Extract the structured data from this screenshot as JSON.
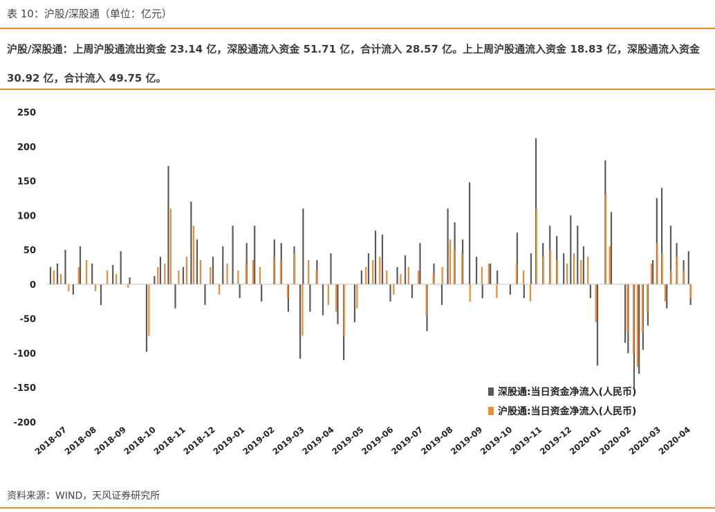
{
  "caption": "表 10：沪股/深股通（单位：亿元）",
  "summary": "沪股/深股通：上周沪股通流出资金 23.14 亿，深股通流入资金 51.71 亿，合计流入 28.57 亿。上上周沪股通流入资金 18.83 亿，深股通流入资金 30.92 亿，合计流入 49.75 亿。",
  "source": "资料来源：WIND，天风证券研究所",
  "colors": {
    "sz": "#595959",
    "sh": "#ee8a35",
    "rule": "#e58a2b"
  },
  "chart_data": {
    "type": "bar",
    "title": "",
    "xlabel": "",
    "ylabel": "",
    "ylim": [
      -200,
      250
    ],
    "yticks": [
      250,
      200,
      150,
      100,
      50,
      0,
      -50,
      -100,
      -150,
      -200
    ],
    "x_ticks": [
      "2018-07",
      "2018-08",
      "2018-09",
      "2018-10",
      "2018-11",
      "2018-12",
      "2019-01",
      "2019-02",
      "2019-03",
      "2019-04",
      "2019-05",
      "2019-06",
      "2019-07",
      "2019-08",
      "2019-09",
      "2019-10",
      "2019-11",
      "2019-12",
      "2020-01",
      "2020-02",
      "2020-03",
      "2020-04"
    ],
    "legend_position": "bottom-right",
    "grid": false,
    "series": [
      {
        "name": "深股通:当日资金净流入(人民币)",
        "color_key": "sz",
        "points": [
          [
            "2018-07-03",
            25
          ],
          [
            "2018-07-10",
            30
          ],
          [
            "2018-07-18",
            50
          ],
          [
            "2018-07-26",
            -15
          ],
          [
            "2018-08-02",
            55
          ],
          [
            "2018-08-14",
            30
          ],
          [
            "2018-08-23",
            -30
          ],
          [
            "2018-09-04",
            28
          ],
          [
            "2018-09-12",
            48
          ],
          [
            "2018-09-21",
            10
          ],
          [
            "2018-10-08",
            -98
          ],
          [
            "2018-10-16",
            12
          ],
          [
            "2018-10-22",
            40
          ],
          [
            "2018-10-30",
            172
          ],
          [
            "2018-11-06",
            -35
          ],
          [
            "2018-11-14",
            25
          ],
          [
            "2018-11-22",
            120
          ],
          [
            "2018-11-28",
            65
          ],
          [
            "2018-12-06",
            -30
          ],
          [
            "2018-12-14",
            40
          ],
          [
            "2018-12-24",
            55
          ],
          [
            "2019-01-03",
            85
          ],
          [
            "2019-01-10",
            -20
          ],
          [
            "2019-01-17",
            60
          ],
          [
            "2019-01-25",
            85
          ],
          [
            "2019-02-01",
            -25
          ],
          [
            "2019-02-14",
            65
          ],
          [
            "2019-02-21",
            60
          ],
          [
            "2019-02-28",
            -40
          ],
          [
            "2019-03-06",
            55
          ],
          [
            "2019-03-12",
            -108
          ],
          [
            "2019-03-15",
            110
          ],
          [
            "2019-03-22",
            -40
          ],
          [
            "2019-03-29",
            35
          ],
          [
            "2019-04-04",
            -45
          ],
          [
            "2019-04-12",
            45
          ],
          [
            "2019-04-19",
            -58
          ],
          [
            "2019-04-25",
            -110
          ],
          [
            "2019-05-06",
            -55
          ],
          [
            "2019-05-13",
            20
          ],
          [
            "2019-05-20",
            45
          ],
          [
            "2019-05-27",
            78
          ],
          [
            "2019-06-03",
            72
          ],
          [
            "2019-06-11",
            -25
          ],
          [
            "2019-06-18",
            25
          ],
          [
            "2019-06-26",
            42
          ],
          [
            "2019-07-03",
            -20
          ],
          [
            "2019-07-11",
            60
          ],
          [
            "2019-07-18",
            -68
          ],
          [
            "2019-07-25",
            30
          ],
          [
            "2019-08-02",
            -30
          ],
          [
            "2019-08-08",
            110
          ],
          [
            "2019-08-15",
            90
          ],
          [
            "2019-08-23",
            65
          ],
          [
            "2019-08-30",
            148
          ],
          [
            "2019-09-06",
            40
          ],
          [
            "2019-09-12",
            -20
          ],
          [
            "2019-09-20",
            30
          ],
          [
            "2019-09-27",
            20
          ],
          [
            "2019-10-10",
            -15
          ],
          [
            "2019-10-17",
            75
          ],
          [
            "2019-10-24",
            -20
          ],
          [
            "2019-10-31",
            45
          ],
          [
            "2019-11-05",
            212
          ],
          [
            "2019-11-12",
            60
          ],
          [
            "2019-11-19",
            85
          ],
          [
            "2019-11-26",
            70
          ],
          [
            "2019-12-03",
            45
          ],
          [
            "2019-12-10",
            100
          ],
          [
            "2019-12-17",
            85
          ],
          [
            "2019-12-23",
            55
          ],
          [
            "2019-12-30",
            -20
          ],
          [
            "2020-01-06",
            -118
          ],
          [
            "2020-01-14",
            180
          ],
          [
            "2020-01-20",
            105
          ],
          [
            "2020-02-03",
            -85
          ],
          [
            "2020-02-06",
            -100
          ],
          [
            "2020-02-12",
            -150
          ],
          [
            "2020-02-17",
            -130
          ],
          [
            "2020-02-21",
            -95
          ],
          [
            "2020-02-26",
            -60
          ],
          [
            "2020-03-02",
            35
          ],
          [
            "2020-03-06",
            125
          ],
          [
            "2020-03-11",
            140
          ],
          [
            "2020-03-16",
            -35
          ],
          [
            "2020-03-20",
            85
          ],
          [
            "2020-03-26",
            60
          ],
          [
            "2020-04-02",
            35
          ],
          [
            "2020-04-07",
            48
          ],
          [
            "2020-04-09",
            -30
          ]
        ]
      },
      {
        "name": "沪股通:当日资金净流入(人民币)",
        "color_key": "sh",
        "points": [
          [
            "2018-07-05",
            20
          ],
          [
            "2018-07-12",
            15
          ],
          [
            "2018-07-20",
            -10
          ],
          [
            "2018-07-30",
            25
          ],
          [
            "2018-08-07",
            35
          ],
          [
            "2018-08-16",
            -10
          ],
          [
            "2018-08-28",
            20
          ],
          [
            "2018-09-06",
            15
          ],
          [
            "2018-09-18",
            -5
          ],
          [
            "2018-10-09",
            -75
          ],
          [
            "2018-10-18",
            25
          ],
          [
            "2018-10-25",
            30
          ],
          [
            "2018-10-31",
            110
          ],
          [
            "2018-11-08",
            20
          ],
          [
            "2018-11-16",
            40
          ],
          [
            "2018-11-23",
            85
          ],
          [
            "2018-11-30",
            35
          ],
          [
            "2018-12-10",
            25
          ],
          [
            "2018-12-19",
            -15
          ],
          [
            "2018-12-27",
            30
          ],
          [
            "2019-01-07",
            20
          ],
          [
            "2019-01-15",
            30
          ],
          [
            "2019-01-22",
            35
          ],
          [
            "2019-01-29",
            25
          ],
          [
            "2019-02-12",
            40
          ],
          [
            "2019-02-19",
            35
          ],
          [
            "2019-02-26",
            -20
          ],
          [
            "2019-03-05",
            45
          ],
          [
            "2019-03-13",
            -75
          ],
          [
            "2019-03-19",
            35
          ],
          [
            "2019-03-27",
            20
          ],
          [
            "2019-04-08",
            -30
          ],
          [
            "2019-04-16",
            -40
          ],
          [
            "2019-04-24",
            -75
          ],
          [
            "2019-05-07",
            -35
          ],
          [
            "2019-05-16",
            25
          ],
          [
            "2019-05-23",
            35
          ],
          [
            "2019-05-30",
            40
          ],
          [
            "2019-06-06",
            20
          ],
          [
            "2019-06-13",
            -15
          ],
          [
            "2019-06-20",
            15
          ],
          [
            "2019-06-28",
            25
          ],
          [
            "2019-07-08",
            20
          ],
          [
            "2019-07-16",
            -45
          ],
          [
            "2019-07-23",
            15
          ],
          [
            "2019-08-01",
            25
          ],
          [
            "2019-08-09",
            65
          ],
          [
            "2019-08-13",
            50
          ],
          [
            "2019-08-21",
            45
          ],
          [
            "2019-08-29",
            -25
          ],
          [
            "2019-09-10",
            25
          ],
          [
            "2019-09-17",
            30
          ],
          [
            "2019-09-25",
            -20
          ],
          [
            "2019-10-15",
            30
          ],
          [
            "2019-10-22",
            20
          ],
          [
            "2019-10-29",
            -25
          ],
          [
            "2019-11-04",
            110
          ],
          [
            "2019-11-11",
            40
          ],
          [
            "2019-11-18",
            50
          ],
          [
            "2019-11-25",
            35
          ],
          [
            "2019-12-05",
            30
          ],
          [
            "2019-12-12",
            45
          ],
          [
            "2019-12-19",
            35
          ],
          [
            "2019-12-26",
            40
          ],
          [
            "2020-01-03",
            -55
          ],
          [
            "2020-01-13",
            130
          ],
          [
            "2020-01-17",
            55
          ],
          [
            "2020-02-04",
            -70
          ],
          [
            "2020-02-10",
            -100
          ],
          [
            "2020-02-14",
            -120
          ],
          [
            "2020-02-19",
            -70
          ],
          [
            "2020-02-24",
            -40
          ],
          [
            "2020-02-28",
            30
          ],
          [
            "2020-03-05",
            60
          ],
          [
            "2020-03-10",
            45
          ],
          [
            "2020-03-13",
            -25
          ],
          [
            "2020-03-19",
            20
          ],
          [
            "2020-03-25",
            40
          ],
          [
            "2020-04-01",
            20
          ],
          [
            "2020-04-08",
            -20
          ]
        ]
      }
    ]
  }
}
